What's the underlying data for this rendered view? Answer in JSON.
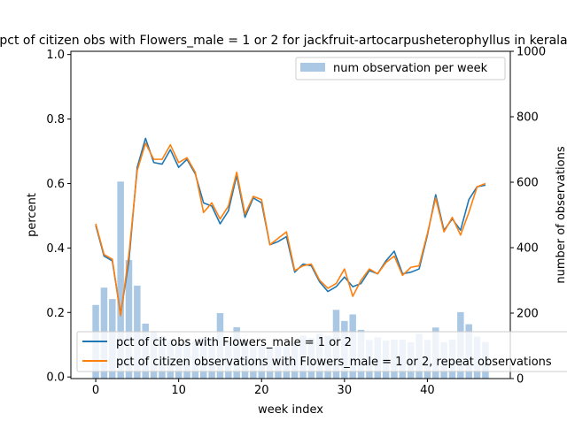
{
  "chart_data": {
    "type": "bar+line",
    "title": "pct of citizen obs with Flowers_male = 1 or 2 for jackfruit-artocarpusheterophyllus in kerala",
    "xlabel": "week index",
    "ylabel_left": "percent",
    "ylabel_right": "number of observations",
    "xlim": [
      -3,
      50
    ],
    "ylim_left": [
      -0.005,
      1.01
    ],
    "ylim_right": [
      0,
      1000
    ],
    "x_ticks": [
      0,
      10,
      20,
      30,
      40
    ],
    "x_tick_labels": [
      "0",
      "10",
      "20",
      "30",
      "40"
    ],
    "y_left_ticks": [
      0.0,
      0.2,
      0.4,
      0.6,
      0.8,
      1.0
    ],
    "y_left_tick_labels": [
      "0.0",
      "0.2",
      "0.4",
      "0.6",
      "0.8",
      "1.0"
    ],
    "y_right_ticks": [
      0,
      200,
      400,
      600,
      800,
      1000
    ],
    "y_right_tick_labels": [
      "0",
      "200",
      "400",
      "600",
      "800",
      "1000"
    ],
    "grid": false,
    "bar_legend": {
      "label": "num observation per week",
      "placement": "upper right"
    },
    "line_legend_placement": "lower left",
    "bars": {
      "name": "num observation per week",
      "color": "#aac8e4",
      "x": [
        0,
        1,
        2,
        3,
        4,
        5,
        6,
        7,
        8,
        9,
        10,
        11,
        12,
        13,
        14,
        15,
        16,
        17,
        18,
        19,
        20,
        21,
        22,
        23,
        24,
        25,
        26,
        27,
        28,
        29,
        30,
        31,
        32,
        33,
        34,
        35,
        36,
        37,
        38,
        39,
        40,
        41,
        42,
        43,
        44,
        45,
        46,
        47
      ],
      "values": [
        225,
        278,
        243,
        602,
        362,
        284,
        168,
        143,
        130,
        118,
        108,
        113,
        115,
        125,
        122,
        200,
        114,
        157,
        117,
        105,
        101,
        98,
        99,
        98,
        109,
        131,
        124,
        137,
        131,
        210,
        176,
        196,
        149,
        118,
        126,
        116,
        119,
        119,
        111,
        137,
        118,
        156,
        111,
        119,
        203,
        166,
        128,
        112
      ]
    },
    "series": [
      {
        "name": "pct of cit obs with Flowers_male = 1 or 2",
        "color": "#1f77b4",
        "x": [
          0,
          1,
          2,
          3,
          4,
          5,
          6,
          7,
          8,
          9,
          10,
          11,
          12,
          13,
          14,
          15,
          16,
          17,
          18,
          19,
          20,
          21,
          22,
          23,
          24,
          25,
          26,
          27,
          28,
          29,
          30,
          31,
          32,
          33,
          34,
          35,
          36,
          37,
          38,
          39,
          40,
          41,
          42,
          43,
          44,
          45,
          46,
          47
        ],
        "values": [
          0.47,
          0.375,
          0.36,
          0.195,
          0.36,
          0.65,
          0.74,
          0.665,
          0.66,
          0.705,
          0.65,
          0.675,
          0.63,
          0.54,
          0.53,
          0.475,
          0.515,
          0.625,
          0.495,
          0.555,
          0.54,
          0.41,
          0.42,
          0.435,
          0.325,
          0.35,
          0.345,
          0.295,
          0.265,
          0.28,
          0.31,
          0.28,
          0.29,
          0.33,
          0.32,
          0.36,
          0.39,
          0.32,
          0.325,
          0.335,
          0.44,
          0.565,
          0.455,
          0.49,
          0.455,
          0.55,
          0.59,
          0.595
        ]
      },
      {
        "name": "pct of citizen observations with Flowers_male = 1 or 2, repeat observations",
        "color": "#ff7f0e",
        "x": [
          0,
          1,
          2,
          3,
          4,
          5,
          6,
          7,
          8,
          9,
          10,
          11,
          12,
          13,
          14,
          15,
          16,
          17,
          18,
          19,
          20,
          21,
          22,
          23,
          24,
          25,
          26,
          27,
          28,
          29,
          30,
          31,
          32,
          33,
          34,
          35,
          36,
          37,
          38,
          39,
          40,
          41,
          42,
          43,
          44,
          45,
          46,
          47
        ],
        "values": [
          0.475,
          0.38,
          0.365,
          0.19,
          0.38,
          0.64,
          0.725,
          0.675,
          0.675,
          0.72,
          0.665,
          0.68,
          0.635,
          0.51,
          0.54,
          0.49,
          0.53,
          0.635,
          0.505,
          0.56,
          0.55,
          0.41,
          0.43,
          0.45,
          0.33,
          0.345,
          0.35,
          0.3,
          0.275,
          0.29,
          0.335,
          0.25,
          0.3,
          0.335,
          0.32,
          0.355,
          0.375,
          0.315,
          0.34,
          0.345,
          0.445,
          0.555,
          0.45,
          0.495,
          0.44,
          0.51,
          0.59,
          0.6
        ]
      }
    ]
  }
}
